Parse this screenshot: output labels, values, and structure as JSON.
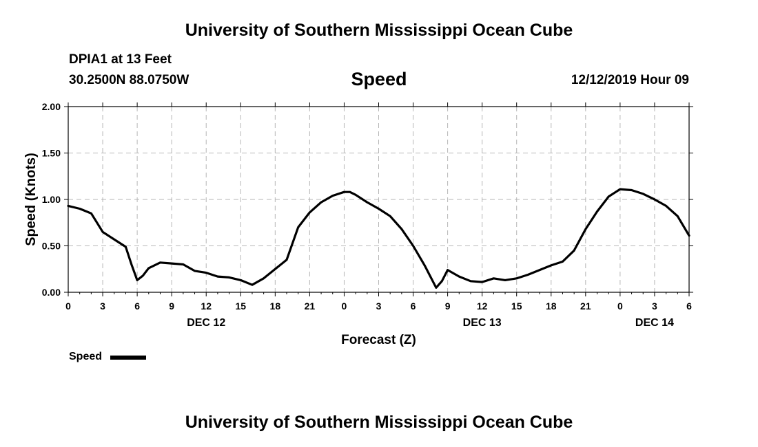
{
  "header": {
    "title": "University of Southern Mississippi Ocean Cube",
    "station": "DPIA1 at 13 Feet",
    "coords": "30.2500N 88.0750W",
    "parameter": "Speed",
    "datetime": "12/12/2019 Hour 09"
  },
  "footer": {
    "title": "University of Southern Mississippi Ocean Cube"
  },
  "legend": {
    "label": "Speed"
  },
  "chart_data": {
    "type": "line",
    "title": "Speed",
    "xlabel": "Forecast (Z)",
    "ylabel": "Speed (Knots)",
    "xlim": [
      0,
      54
    ],
    "ylim": [
      0,
      2
    ],
    "y_ticks": [
      "0.00",
      "0.50",
      "1.00",
      "1.50",
      "2.00"
    ],
    "x_tick_labels": [
      "0",
      "3",
      "6",
      "9",
      "12",
      "15",
      "18",
      "21",
      "0",
      "3",
      "6",
      "9",
      "12",
      "15",
      "18",
      "21",
      "0",
      "3",
      "6"
    ],
    "date_labels": [
      {
        "label": "DEC 12",
        "hour": 12
      },
      {
        "label": "DEC 13",
        "hour": 36
      },
      {
        "label": "DEC 14",
        "hour": 51
      }
    ],
    "grid": true,
    "legend_position": "bottom-left",
    "series": [
      {
        "name": "Speed",
        "color": "#000000",
        "x": [
          0,
          1,
          2,
          3,
          4,
          5,
          5.5,
          6,
          6.5,
          7,
          8,
          9,
          10,
          11,
          12,
          13,
          14,
          15,
          16,
          17,
          18,
          19,
          20,
          21,
          22,
          23,
          24,
          24.5,
          25,
          26,
          27,
          28,
          29,
          30,
          31,
          32,
          32.5,
          33,
          34,
          35,
          36,
          37,
          38,
          39,
          40,
          41,
          42,
          43,
          44,
          45,
          46,
          47,
          48,
          49,
          50,
          51,
          52,
          53,
          54
        ],
        "y": [
          0.93,
          0.9,
          0.85,
          0.65,
          0.57,
          0.49,
          0.3,
          0.13,
          0.18,
          0.26,
          0.32,
          0.31,
          0.3,
          0.23,
          0.21,
          0.17,
          0.16,
          0.13,
          0.08,
          0.15,
          0.25,
          0.35,
          0.7,
          0.86,
          0.97,
          1.04,
          1.08,
          1.08,
          1.05,
          0.97,
          0.9,
          0.82,
          0.68,
          0.5,
          0.29,
          0.05,
          0.12,
          0.24,
          0.17,
          0.12,
          0.11,
          0.15,
          0.13,
          0.15,
          0.19,
          0.24,
          0.29,
          0.33,
          0.45,
          0.68,
          0.87,
          1.03,
          1.11,
          1.1,
          1.06,
          1.0,
          0.93,
          0.82,
          0.61
        ]
      }
    ]
  }
}
